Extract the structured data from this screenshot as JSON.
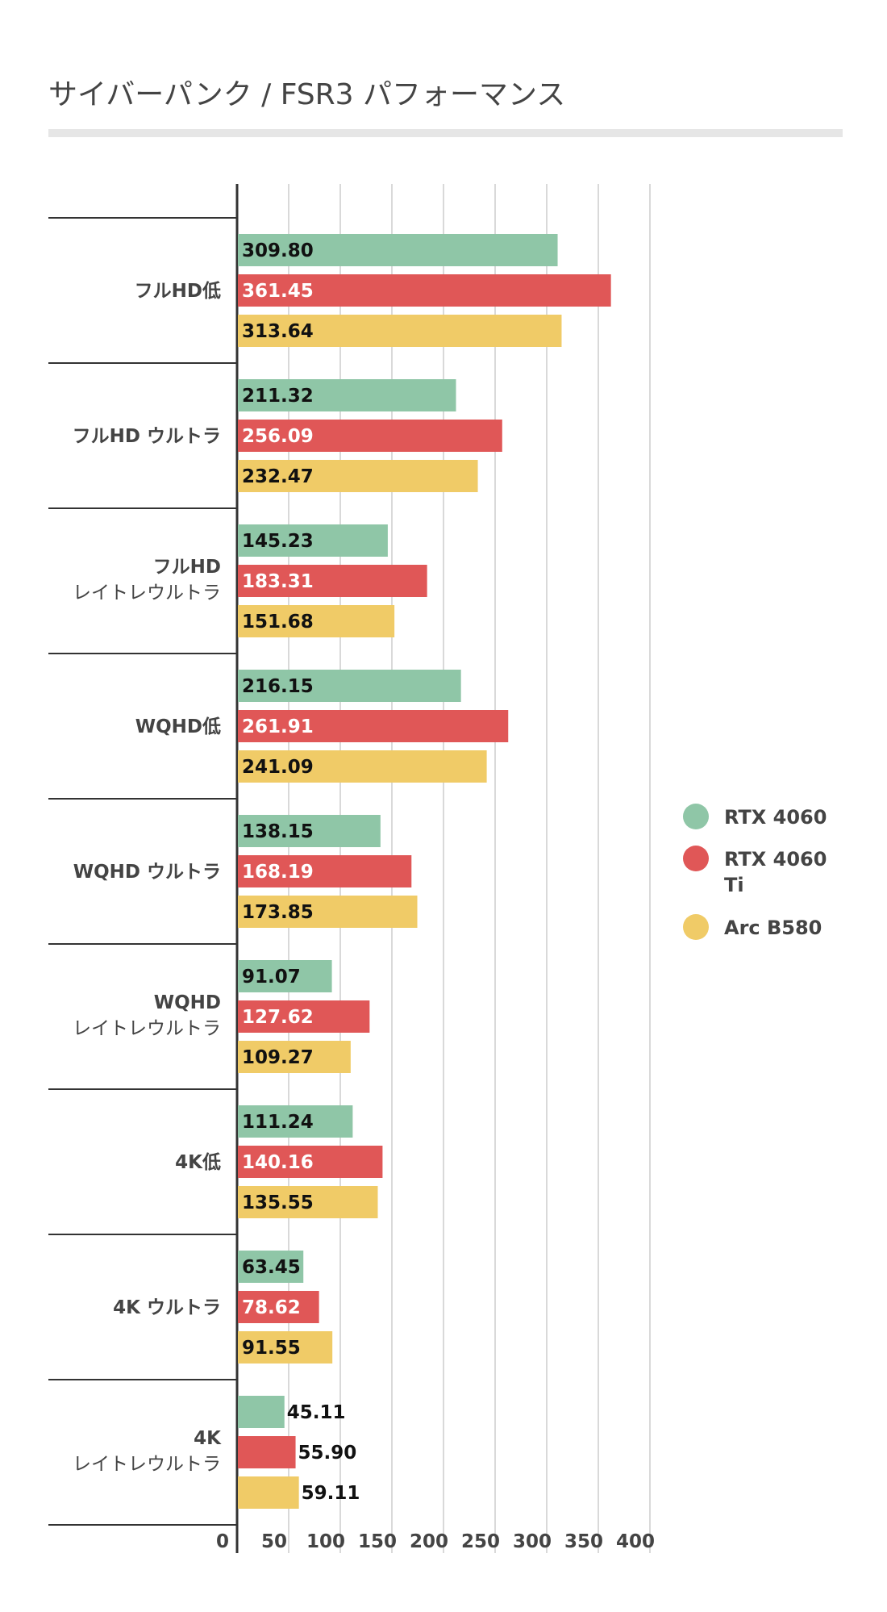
{
  "chart_data": {
    "type": "bar",
    "orientation": "horizontal",
    "title": "サイバーパンク / FSR3 パフォーマンス",
    "categories": [
      {
        "line1": "フルHD低",
        "line2": ""
      },
      {
        "line1": "フルHD ウルトラ",
        "line2": ""
      },
      {
        "line1": "フルHD",
        "line2": "レイトレウルトラ"
      },
      {
        "line1": "WQHD低",
        "line2": ""
      },
      {
        "line1": "WQHD ウルトラ",
        "line2": ""
      },
      {
        "line1": "WQHD",
        "line2": "レイトレウルトラ"
      },
      {
        "line1": "4K低",
        "line2": ""
      },
      {
        "line1": "4K ウルトラ",
        "line2": ""
      },
      {
        "line1": "4K",
        "line2": "レイトレウルトラ"
      }
    ],
    "series": [
      {
        "name": "RTX 4060",
        "legend_line1": "RTX 4060",
        "legend_line2": "",
        "color": "#8fc6a7",
        "label_color": "#111111",
        "values": [
          309.8,
          211.32,
          145.23,
          216.15,
          138.15,
          91.07,
          111.24,
          63.45,
          45.11
        ],
        "labels": [
          "309.80",
          "211.32",
          "145.23",
          "216.15",
          "138.15",
          "91.07",
          "111.24",
          "63.45",
          "45.11"
        ]
      },
      {
        "name": "RTX 4060 Ti",
        "legend_line1": "RTX 4060",
        "legend_line2": "Ti",
        "color": "#e05757",
        "label_color": "#ffffff",
        "values": [
          361.45,
          256.09,
          183.31,
          261.91,
          168.19,
          127.62,
          140.16,
          78.62,
          55.9
        ],
        "labels": [
          "361.45",
          "256.09",
          "183.31",
          "261.91",
          "168.19",
          "127.62",
          "140.16",
          "78.62",
          "55.90"
        ]
      },
      {
        "name": "Arc B580",
        "legend_line1": "Arc B580",
        "legend_line2": "",
        "color": "#f0cb67",
        "label_color": "#111111",
        "values": [
          313.64,
          232.47,
          151.68,
          241.09,
          173.85,
          109.27,
          135.55,
          91.55,
          59.11
        ],
        "labels": [
          "313.64",
          "232.47",
          "151.68",
          "241.09",
          "173.85",
          "109.27",
          "135.55",
          "91.55",
          "59.11"
        ]
      }
    ],
    "xlim": [
      0,
      400
    ],
    "xticks": [
      "0",
      "50",
      "100",
      "150",
      "200",
      "250",
      "300",
      "350",
      "400"
    ],
    "xlabel": "",
    "ylabel": "",
    "grid": true,
    "legend_position": "right"
  }
}
